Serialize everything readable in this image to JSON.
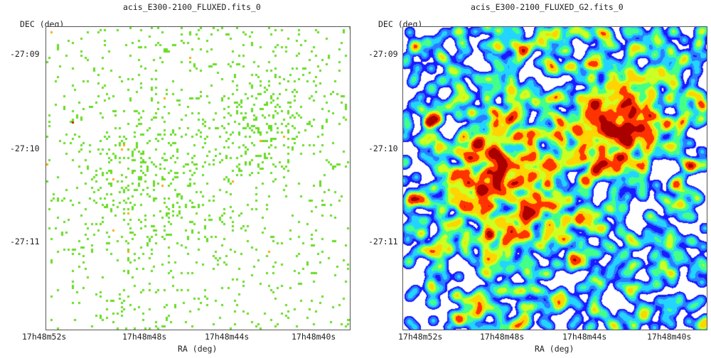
{
  "panels": [
    {
      "title": "acis_E300-2100_FLUXED.fits_0",
      "ylabel": "DEC (deg)",
      "xlabel": "RA (deg)",
      "yticks": [
        "-27:09",
        "-27:10",
        "-27:11"
      ],
      "xticks": [
        "17h48m52s",
        "17h48m48s",
        "17h48m44s",
        "17h48m40s"
      ],
      "rendering": "raw counts",
      "colors": {
        "primary": "#66dd22",
        "secondary": "#ffaa00"
      }
    },
    {
      "title": "acis_E300-2100_FLUXED_G2.fits_0",
      "ylabel": "DEC (deg)",
      "xlabel": "RA (deg)",
      "yticks": [
        "-27:09",
        "-27:10",
        "-27:11"
      ],
      "xticks": [
        "17h48m52s",
        "17h48m48s",
        "17h48m44s",
        "17h48m40s"
      ],
      "rendering": "gaussian smoothed",
      "colormap": [
        "#ffffff",
        "#1a1aff",
        "#2a7dff",
        "#22d4ff",
        "#44ff88",
        "#ccff22",
        "#ffd400",
        "#ff3300",
        "#aa0000"
      ]
    }
  ]
}
